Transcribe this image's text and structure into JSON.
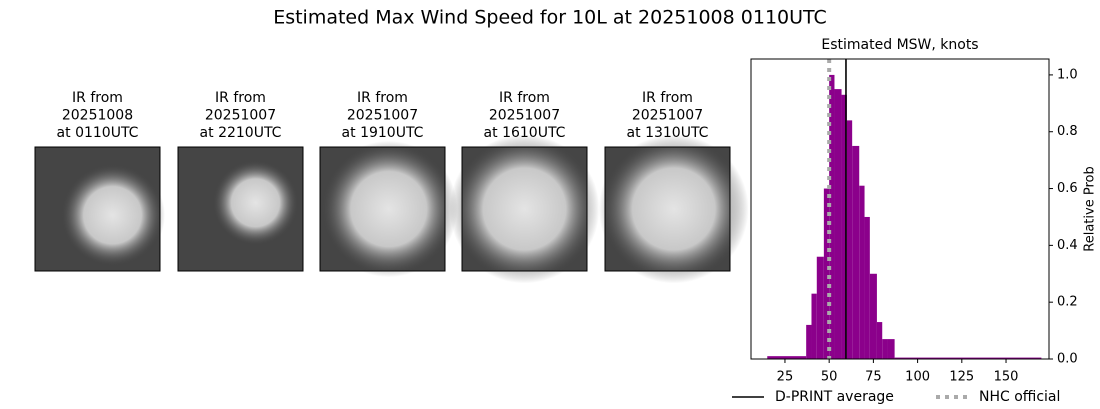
{
  "title": "Estimated Max Wind Speed for 10L at 20251008 0110UTC",
  "panels": [
    {
      "caption": [
        "IR from",
        "20251008",
        "at 0110UTC"
      ]
    },
    {
      "caption": [
        "IR from",
        "20251007",
        "at 2210UTC"
      ]
    },
    {
      "caption": [
        "IR from",
        "20251007",
        "at 1910UTC"
      ]
    },
    {
      "caption": [
        "IR from",
        "20251007",
        "at 1610UTC"
      ]
    },
    {
      "caption": [
        "IR from",
        "20251007",
        "at 1310UTC"
      ]
    }
  ],
  "chart_data": {
    "type": "histogram",
    "title": "Estimated MSW, knots",
    "y_label": "Relative Prob",
    "y_axis_side": "right",
    "bins": [
      15,
      37,
      40,
      43,
      47,
      50,
      53,
      57,
      60,
      63,
      67,
      70,
      73,
      77,
      80,
      83,
      87,
      170
    ],
    "values": [
      0.01,
      0.12,
      0.23,
      0.36,
      0.6,
      1.0,
      0.95,
      0.93,
      0.84,
      0.75,
      0.61,
      0.5,
      0.3,
      0.13,
      0.07,
      0.07,
      0.005
    ],
    "color": "#8b008b",
    "lines": [
      {
        "name": "D-PRINT average",
        "value": 59.5,
        "color": "#000000",
        "style": "solid"
      },
      {
        "name": "NHC official",
        "value": 50,
        "color": "#aaaaaa",
        "style": "dotted"
      }
    ],
    "xlim": [
      5.8,
      174.3
    ],
    "ylim": [
      0,
      1.056
    ],
    "xticks": [
      25,
      50,
      75,
      100,
      125,
      150
    ],
    "yticks": [
      {
        "value": 0,
        "label": "0.0"
      },
      0.2,
      0.4,
      0.6,
      0.8,
      {
        "value": 1,
        "label": "1.0"
      }
    ],
    "legend": "below"
  }
}
